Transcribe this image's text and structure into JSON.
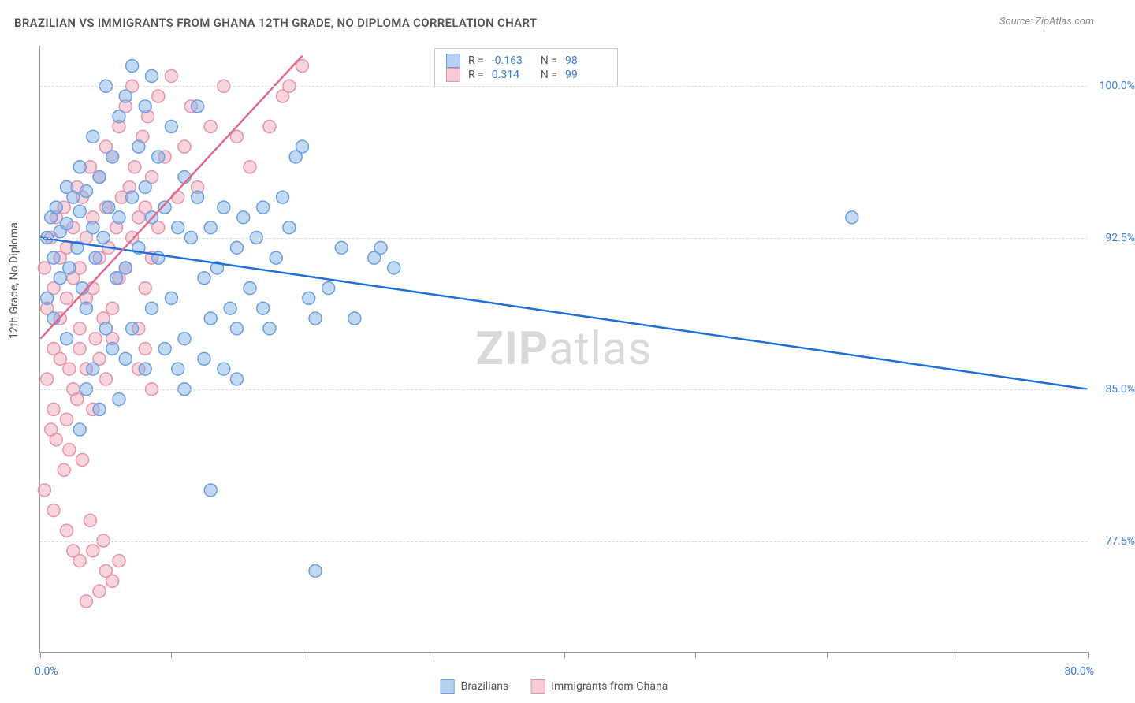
{
  "title": "BRAZILIAN VS IMMIGRANTS FROM GHANA 12TH GRADE, NO DIPLOMA CORRELATION CHART",
  "source_prefix": "Source: ",
  "source_name": "ZipAtlas.com",
  "ylabel": "12th Grade, No Diploma",
  "watermark_prefix": "ZIP",
  "watermark_suffix": "atlas",
  "chart": {
    "type": "scatter",
    "xlim": [
      0,
      80
    ],
    "ylim": [
      72,
      102
    ],
    "y_ticks": [
      77.5,
      85.0,
      92.5,
      100.0
    ],
    "y_tick_labels": [
      "77.5%",
      "85.0%",
      "92.5%",
      "100.0%"
    ],
    "x_ticks": [
      0,
      10,
      20,
      30,
      40,
      50,
      60,
      70,
      80
    ],
    "x_axis_labels": {
      "left": "0.0%",
      "right": "80.0%"
    },
    "background_color": "#ffffff",
    "grid_color": "#dddddd",
    "axis_color": "#999999",
    "label_color": "#3b7dd8",
    "marker_radius": 8,
    "marker_stroke_width": 1.5,
    "line_width": 2.5,
    "series": [
      {
        "name": "Brazilians",
        "fill": "rgba(120,170,230,0.45)",
        "stroke": "#6aa0e0",
        "line_color": "#1e6fd9",
        "R": "-0.163",
        "N": "98",
        "trend": {
          "x1": 0,
          "y1": 92.5,
          "x2": 80,
          "y2": 85.0
        },
        "points": [
          [
            0.5,
            92.5
          ],
          [
            0.8,
            93.5
          ],
          [
            1.0,
            91.5
          ],
          [
            1.2,
            94.0
          ],
          [
            1.5,
            92.8
          ],
          [
            1.5,
            90.5
          ],
          [
            2.0,
            93.2
          ],
          [
            2.0,
            95.0
          ],
          [
            2.2,
            91.0
          ],
          [
            2.5,
            94.5
          ],
          [
            2.8,
            92.0
          ],
          [
            3.0,
            93.8
          ],
          [
            3.0,
            96.0
          ],
          [
            3.2,
            90.0
          ],
          [
            3.5,
            94.8
          ],
          [
            3.5,
            89.0
          ],
          [
            4.0,
            93.0
          ],
          [
            4.0,
            97.5
          ],
          [
            4.2,
            91.5
          ],
          [
            4.5,
            95.5
          ],
          [
            4.8,
            92.5
          ],
          [
            5.0,
            100.0
          ],
          [
            5.0,
            88.0
          ],
          [
            5.2,
            94.0
          ],
          [
            5.5,
            96.5
          ],
          [
            5.8,
            90.5
          ],
          [
            6.0,
            93.5
          ],
          [
            6.0,
            98.5
          ],
          [
            6.5,
            91.0
          ],
          [
            6.5,
            99.5
          ],
          [
            7.0,
            94.5
          ],
          [
            7.0,
            101.0
          ],
          [
            7.5,
            92.0
          ],
          [
            7.5,
            97.0
          ],
          [
            8.0,
            95.0
          ],
          [
            8.0,
            99.0
          ],
          [
            8.5,
            93.5
          ],
          [
            8.5,
            100.5
          ],
          [
            9.0,
            91.5
          ],
          [
            9.0,
            96.5
          ],
          [
            9.5,
            94.0
          ],
          [
            10.0,
            98.0
          ],
          [
            10.0,
            89.5
          ],
          [
            10.5,
            93.0
          ],
          [
            11.0,
            95.5
          ],
          [
            11.0,
            87.5
          ],
          [
            11.5,
            92.5
          ],
          [
            12.0,
            94.5
          ],
          [
            12.0,
            99.0
          ],
          [
            12.5,
            90.5
          ],
          [
            12.5,
            86.5
          ],
          [
            13.0,
            93.0
          ],
          [
            13.0,
            88.5
          ],
          [
            13.5,
            91.0
          ],
          [
            14.0,
            94.0
          ],
          [
            14.0,
            86.0
          ],
          [
            14.5,
            89.0
          ],
          [
            15.0,
            92.0
          ],
          [
            15.0,
            88.0
          ],
          [
            15.5,
            93.5
          ],
          [
            16.0,
            90.0
          ],
          [
            16.5,
            92.5
          ],
          [
            17.0,
            89.0
          ],
          [
            17.0,
            94.0
          ],
          [
            18.0,
            91.5
          ],
          [
            19.0,
            93.0
          ],
          [
            19.5,
            96.5
          ],
          [
            20.0,
            97.0
          ],
          [
            20.5,
            89.5
          ],
          [
            21.0,
            88.5
          ],
          [
            22.0,
            90.0
          ],
          [
            23.0,
            92.0
          ],
          [
            13.0,
            80.0
          ],
          [
            21.0,
            76.0
          ],
          [
            62.0,
            93.5
          ],
          [
            26.0,
            92.0
          ],
          [
            27.0,
            91.0
          ],
          [
            9.5,
            87.0
          ],
          [
            10.5,
            86.0
          ],
          [
            11.0,
            85.0
          ],
          [
            5.5,
            87.0
          ],
          [
            6.5,
            86.5
          ],
          [
            4.0,
            86.0
          ],
          [
            3.5,
            85.0
          ],
          [
            8.0,
            86.0
          ],
          [
            2.0,
            87.5
          ],
          [
            1.0,
            88.5
          ],
          [
            0.5,
            89.5
          ],
          [
            7.0,
            88.0
          ],
          [
            8.5,
            89.0
          ],
          [
            6.0,
            84.5
          ],
          [
            4.5,
            84.0
          ],
          [
            3.0,
            83.0
          ],
          [
            15.0,
            85.5
          ],
          [
            17.5,
            88.0
          ],
          [
            24.0,
            88.5
          ],
          [
            25.5,
            91.5
          ],
          [
            18.5,
            94.5
          ]
        ]
      },
      {
        "name": "Immigrants from Ghana",
        "fill": "rgba(240,160,180,0.45)",
        "stroke": "#e693ab",
        "line_color": "#e06a8f",
        "R": "0.314",
        "N": "99",
        "trend": {
          "x1": 0,
          "y1": 87.5,
          "x2": 20,
          "y2": 101.5
        },
        "points": [
          [
            0.3,
            91.0
          ],
          [
            0.5,
            89.0
          ],
          [
            0.8,
            92.5
          ],
          [
            1.0,
            90.0
          ],
          [
            1.0,
            87.0
          ],
          [
            1.2,
            93.5
          ],
          [
            1.5,
            88.5
          ],
          [
            1.5,
            91.5
          ],
          [
            1.8,
            94.0
          ],
          [
            2.0,
            89.5
          ],
          [
            2.0,
            92.0
          ],
          [
            2.2,
            86.0
          ],
          [
            2.5,
            93.0
          ],
          [
            2.5,
            90.5
          ],
          [
            2.8,
            95.0
          ],
          [
            3.0,
            91.0
          ],
          [
            3.0,
            88.0
          ],
          [
            3.2,
            94.5
          ],
          [
            3.5,
            92.5
          ],
          [
            3.5,
            89.5
          ],
          [
            3.8,
            96.0
          ],
          [
            4.0,
            93.5
          ],
          [
            4.0,
            90.0
          ],
          [
            4.2,
            87.5
          ],
          [
            4.5,
            95.5
          ],
          [
            4.5,
            91.5
          ],
          [
            4.8,
            88.5
          ],
          [
            5.0,
            94.0
          ],
          [
            5.0,
            97.0
          ],
          [
            5.2,
            92.0
          ],
          [
            5.5,
            89.0
          ],
          [
            5.5,
            96.5
          ],
          [
            5.8,
            93.0
          ],
          [
            6.0,
            90.5
          ],
          [
            6.0,
            98.0
          ],
          [
            6.2,
            94.5
          ],
          [
            6.5,
            91.0
          ],
          [
            6.5,
            99.0
          ],
          [
            6.8,
            95.0
          ],
          [
            7.0,
            92.5
          ],
          [
            7.0,
            100.0
          ],
          [
            7.2,
            96.0
          ],
          [
            7.5,
            93.5
          ],
          [
            7.5,
            88.0
          ],
          [
            7.8,
            97.5
          ],
          [
            8.0,
            94.0
          ],
          [
            8.0,
            90.0
          ],
          [
            8.2,
            98.5
          ],
          [
            8.5,
            95.5
          ],
          [
            8.5,
            91.5
          ],
          [
            9.0,
            99.5
          ],
          [
            9.0,
            93.0
          ],
          [
            9.5,
            96.5
          ],
          [
            10.0,
            100.5
          ],
          [
            10.5,
            94.5
          ],
          [
            11.0,
            97.0
          ],
          [
            11.5,
            99.0
          ],
          [
            12.0,
            95.0
          ],
          [
            13.0,
            98.0
          ],
          [
            14.0,
            100.0
          ],
          [
            0.5,
            85.5
          ],
          [
            1.0,
            84.0
          ],
          [
            1.5,
            86.5
          ],
          [
            2.0,
            83.5
          ],
          [
            2.5,
            85.0
          ],
          [
            3.0,
            87.0
          ],
          [
            1.2,
            82.5
          ],
          [
            2.8,
            84.5
          ],
          [
            3.5,
            86.0
          ],
          [
            4.0,
            84.0
          ],
          [
            4.5,
            86.5
          ],
          [
            5.0,
            85.5
          ],
          [
            5.5,
            87.5
          ],
          [
            1.8,
            81.0
          ],
          [
            2.2,
            82.0
          ],
          [
            0.8,
            83.0
          ],
          [
            3.2,
            81.5
          ],
          [
            2.0,
            78.0
          ],
          [
            3.0,
            76.5
          ],
          [
            4.0,
            77.0
          ],
          [
            5.0,
            76.0
          ],
          [
            4.5,
            75.0
          ],
          [
            3.5,
            74.5
          ],
          [
            5.5,
            75.5
          ],
          [
            4.8,
            77.5
          ],
          [
            3.8,
            78.5
          ],
          [
            2.5,
            77.0
          ],
          [
            6.0,
            76.5
          ],
          [
            20.0,
            101.0
          ],
          [
            18.5,
            99.5
          ],
          [
            16.0,
            96.0
          ],
          [
            15.0,
            97.5
          ],
          [
            17.5,
            98.0
          ],
          [
            19.0,
            100.0
          ],
          [
            0.3,
            80.0
          ],
          [
            1.0,
            79.0
          ],
          [
            7.5,
            86.0
          ],
          [
            8.0,
            87.0
          ],
          [
            8.5,
            85.0
          ]
        ]
      }
    ]
  },
  "legend_stats": {
    "R_label": "R =",
    "N_label": "N ="
  },
  "bottom_legend": {
    "series1": "Brazilians",
    "series2": "Immigrants from Ghana"
  }
}
